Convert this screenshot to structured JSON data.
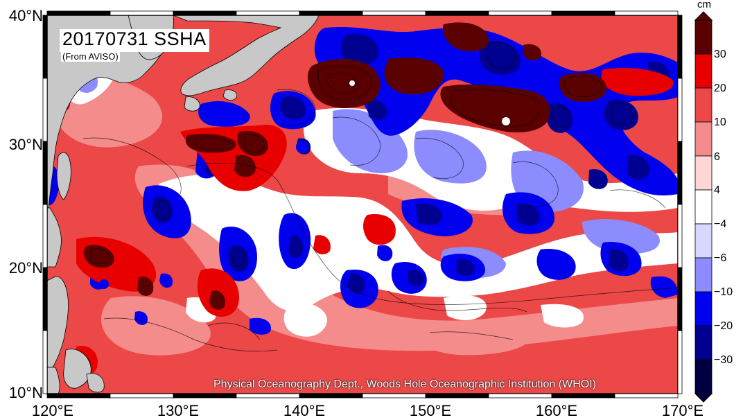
{
  "map": {
    "title": "20170731 SSHA",
    "subtitle": "(From AVISO)",
    "credit": "Physical Oceanography Dept., Woods Hole Oceanographic Institution (WHOI)",
    "lat_labels": [
      "40°N",
      "30°N",
      "20°N",
      "10°N"
    ],
    "lon_labels": [
      "120°E",
      "130°E",
      "140°E",
      "150°E",
      "160°E",
      "170°E"
    ],
    "land_color": "#c8c8c8",
    "ocean_base_color": "#f06060"
  },
  "colorbar": {
    "unit": "cm",
    "labels": [
      "30",
      "20",
      "10",
      "6",
      "4",
      "−4",
      "−6",
      "−10",
      "−20",
      "−30"
    ],
    "colors": [
      "#5a0000",
      "#e80000",
      "#ec4848",
      "#f48c8c",
      "#ffd6d6",
      "#ffffff",
      "#d8d8ff",
      "#8c8cff",
      "#0000ee",
      "#000090",
      "#000040"
    ]
  }
}
